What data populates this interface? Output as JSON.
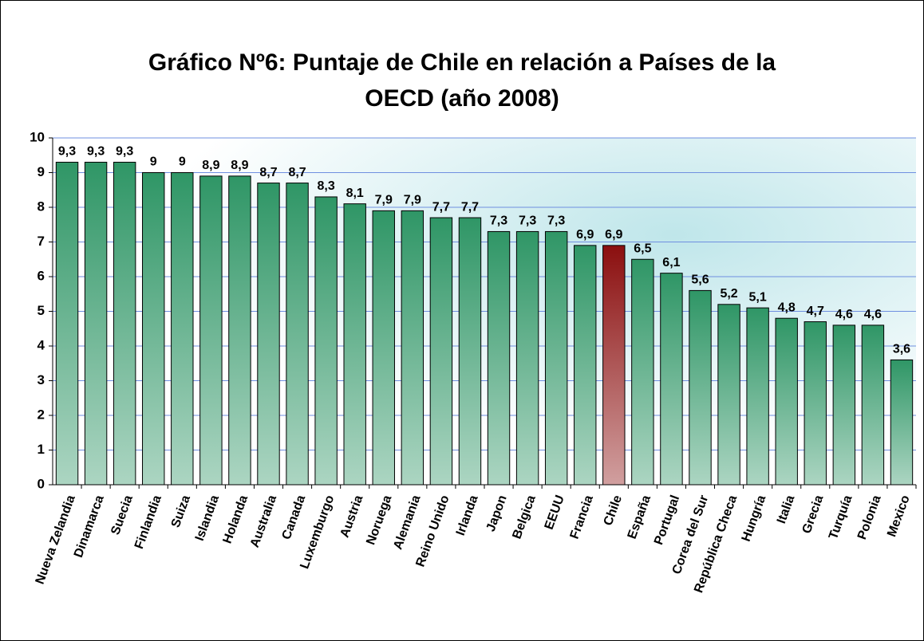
{
  "chart_data": {
    "type": "bar",
    "title": [
      "Gráfico Nº6: Puntaje de Chile en relación a Países de la",
      "OECD (año 2008)"
    ],
    "categories": [
      "Nueva Zelandia",
      "Dinamarca",
      "Suecia",
      "Finlandia",
      "Suiza",
      "Islandia",
      "Holanda",
      "Australia",
      "Canada",
      "Luxemburgo",
      "Austria",
      "Noruega",
      "Alemania",
      "Reino Unido",
      "Irlanda",
      "Japon",
      "Belgica",
      "EEUU",
      "Francia",
      "Chile",
      "España",
      "Portugal",
      "Corea del Sur",
      "República Checa",
      "Hungría",
      "Italia",
      "Grecia",
      "Turquía",
      "Polonia",
      "Mexico"
    ],
    "values": [
      9.3,
      9.3,
      9.3,
      9,
      9,
      8.9,
      8.9,
      8.7,
      8.7,
      8.3,
      8.1,
      7.9,
      7.9,
      7.7,
      7.7,
      7.3,
      7.3,
      7.3,
      6.9,
      6.9,
      6.5,
      6.1,
      5.6,
      5.2,
      5.1,
      4.8,
      4.7,
      4.6,
      4.6,
      3.6
    ],
    "value_labels": [
      "9,3",
      "9,3",
      "9,3",
      "9",
      "9",
      "8,9",
      "8,9",
      "8,7",
      "8,7",
      "8,3",
      "8,1",
      "7,9",
      "7,9",
      "7,7",
      "7,7",
      "7,3",
      "7,3",
      "7,3",
      "6,9",
      "6,9",
      "6,5",
      "6,1",
      "5,6",
      "5,2",
      "5,1",
      "4,8",
      "4,7",
      "4,6",
      "4,6",
      "3,6"
    ],
    "colors": [
      "#2f9666",
      "#2f9666",
      "#2f9666",
      "#2f9666",
      "#2f9666",
      "#2f9666",
      "#2f9666",
      "#2f9666",
      "#2f9666",
      "#2f9666",
      "#2f9666",
      "#2f9666",
      "#2f9666",
      "#2f9666",
      "#2f9666",
      "#2f9666",
      "#2f9666",
      "#2f9666",
      "#2f9666",
      "#8b0f0f",
      "#2f9666",
      "#2f9666",
      "#2f9666",
      "#2f9666",
      "#2f9666",
      "#2f9666",
      "#2f9666",
      "#2f9666",
      "#2f9666",
      "#2f9666"
    ],
    "ylim": [
      0,
      10
    ],
    "yticks": [
      0,
      1,
      2,
      3,
      4,
      5,
      6,
      7,
      8,
      9,
      10
    ],
    "grid": true
  }
}
